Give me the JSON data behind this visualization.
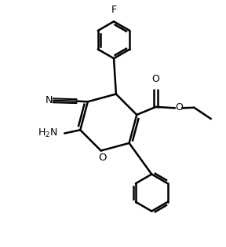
{
  "bg_color": "#ffffff",
  "line_color": "#000000",
  "line_width": 1.8,
  "font_size": 8.5,
  "figsize": [
    2.88,
    3.14
  ],
  "dpi": 100,
  "xlim": [
    0,
    10
  ],
  "ylim": [
    0,
    10.9
  ]
}
